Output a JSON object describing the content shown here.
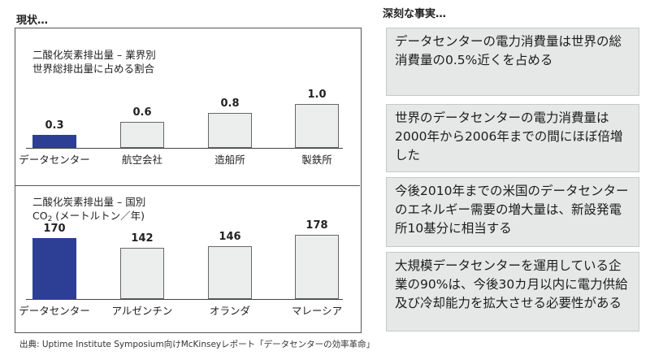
{
  "left_heading": "現状…",
  "right_heading": "深刻な事実…",
  "chart_data": [
    {
      "type": "bar",
      "title_line1": "二酸化炭素排出量 – 業界別",
      "title_line2": "世界総排出量に占める割合",
      "categories": [
        "データセンター",
        "航空会社",
        "造船所",
        "製鉄所"
      ],
      "values": [
        0.3,
        0.6,
        0.8,
        1.0
      ],
      "value_labels": [
        "0.3",
        "0.6",
        "0.8",
        "1.0"
      ],
      "highlight_index": 0,
      "ylim": [
        0,
        1.0
      ]
    },
    {
      "type": "bar",
      "title_line1": "二酸化炭素排出量 – 国別",
      "title_line2_prefix": "CO",
      "title_line2_sub": "2",
      "title_line2_suffix": " (メートルトン／年)",
      "categories": [
        "データセンター",
        "アルゼンチン",
        "オランダ",
        "マレーシア"
      ],
      "values": [
        170,
        142,
        146,
        178
      ],
      "value_labels": [
        "170",
        "142",
        "146",
        "178"
      ],
      "highlight_index": 0,
      "ylim": [
        0,
        178
      ]
    }
  ],
  "facts": [
    "データセンターの電力消費量は世界の総消費量の0.5%近くを占める",
    "世界のデータセンターの電力消費量は2000年から2006年までの間にほぼ倍増した",
    "今後2010年までの米国のデータセンターのエネルギー需要の増大量は、新設発電所10基分に相当する",
    "大規模データセンターを運用している企業の90%は、今後30カ月以内に電力供給及び冷却能力を拡大させる必要性がある"
  ],
  "source": "出典: Uptime Institute Symposium向けMcKinseyレポート「データセンターの効率革命」",
  "colors": {
    "highlight_bar": "#2d3f94",
    "normal_bar": "#eceeee",
    "fact_box": "#e6e8e8"
  }
}
